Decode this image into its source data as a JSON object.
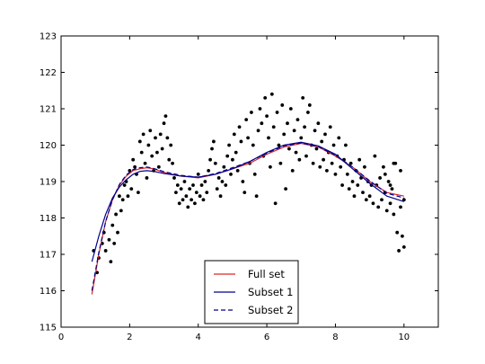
{
  "chart_data": {
    "type": "scatter",
    "title": "",
    "xlabel": "",
    "ylabel": "",
    "xlim": [
      0,
      11
    ],
    "ylim": [
      115,
      123
    ],
    "x_ticks": [
      "0",
      "2",
      "4",
      "6",
      "8",
      "10"
    ],
    "y_ticks": [
      "115",
      "116",
      "117",
      "118",
      "119",
      "120",
      "121",
      "122",
      "123"
    ],
    "grid": false,
    "legend_position": "lower center",
    "scatter": {
      "color": "#000000",
      "points": [
        [
          0.95,
          117.1
        ],
        [
          1.05,
          116.5
        ],
        [
          1.1,
          116.9
        ],
        [
          1.2,
          117.3
        ],
        [
          1.25,
          117.6
        ],
        [
          1.3,
          117.1
        ],
        [
          1.4,
          117.4
        ],
        [
          1.45,
          116.8
        ],
        [
          1.5,
          117.8
        ],
        [
          1.55,
          117.3
        ],
        [
          1.6,
          118.1
        ],
        [
          1.65,
          117.6
        ],
        [
          1.7,
          118.6
        ],
        [
          1.75,
          118.2
        ],
        [
          1.8,
          118.5
        ],
        [
          1.85,
          118.9
        ],
        [
          1.9,
          119.0
        ],
        [
          1.95,
          118.6
        ],
        [
          2.0,
          119.3
        ],
        [
          2.05,
          118.8
        ],
        [
          2.1,
          119.6
        ],
        [
          2.15,
          119.4
        ],
        [
          2.2,
          119.2
        ],
        [
          2.25,
          118.7
        ],
        [
          2.3,
          120.1
        ],
        [
          2.35,
          119.8
        ],
        [
          2.4,
          120.3
        ],
        [
          2.45,
          119.5
        ],
        [
          2.5,
          119.1
        ],
        [
          2.55,
          120.0
        ],
        [
          2.6,
          120.4
        ],
        [
          2.65,
          119.7
        ],
        [
          2.7,
          119.3
        ],
        [
          2.75,
          120.2
        ],
        [
          2.8,
          119.8
        ],
        [
          2.85,
          119.4
        ],
        [
          2.9,
          120.3
        ],
        [
          2.95,
          119.9
        ],
        [
          3.0,
          120.6
        ],
        [
          3.05,
          120.8
        ],
        [
          3.1,
          120.2
        ],
        [
          3.15,
          119.6
        ],
        [
          3.2,
          120.0
        ],
        [
          3.25,
          119.5
        ],
        [
          3.3,
          119.1
        ],
        [
          3.35,
          118.7
        ],
        [
          3.4,
          118.9
        ],
        [
          3.45,
          118.4
        ],
        [
          3.5,
          118.8
        ],
        [
          3.55,
          118.5
        ],
        [
          3.6,
          119.0
        ],
        [
          3.65,
          118.6
        ],
        [
          3.7,
          118.3
        ],
        [
          3.75,
          118.8
        ],
        [
          3.8,
          118.5
        ],
        [
          3.85,
          118.9
        ],
        [
          3.9,
          118.4
        ],
        [
          3.95,
          118.7
        ],
        [
          4.0,
          119.2
        ],
        [
          4.05,
          118.6
        ],
        [
          4.1,
          118.9
        ],
        [
          4.15,
          118.5
        ],
        [
          4.2,
          119.0
        ],
        [
          4.25,
          118.7
        ],
        [
          4.3,
          119.3
        ],
        [
          4.35,
          119.6
        ],
        [
          4.4,
          119.9
        ],
        [
          4.45,
          120.1
        ],
        [
          4.5,
          119.5
        ],
        [
          4.55,
          118.8
        ],
        [
          4.6,
          119.1
        ],
        [
          4.65,
          118.6
        ],
        [
          4.7,
          119.0
        ],
        [
          4.75,
          119.4
        ],
        [
          4.8,
          118.9
        ],
        [
          4.85,
          119.7
        ],
        [
          4.9,
          120.0
        ],
        [
          4.95,
          119.2
        ],
        [
          5.0,
          119.6
        ],
        [
          5.05,
          120.3
        ],
        [
          5.1,
          119.8
        ],
        [
          5.15,
          119.3
        ],
        [
          5.2,
          120.5
        ],
        [
          5.25,
          120.1
        ],
        [
          5.3,
          119.0
        ],
        [
          5.35,
          118.7
        ],
        [
          5.4,
          120.7
        ],
        [
          5.45,
          120.2
        ],
        [
          5.5,
          119.5
        ],
        [
          5.55,
          120.9
        ],
        [
          5.6,
          120.0
        ],
        [
          5.65,
          119.2
        ],
        [
          5.7,
          118.6
        ],
        [
          5.75,
          120.4
        ],
        [
          5.8,
          121.0
        ],
        [
          5.85,
          120.6
        ],
        [
          5.9,
          119.7
        ],
        [
          5.95,
          121.3
        ],
        [
          6.0,
          120.8
        ],
        [
          6.05,
          120.2
        ],
        [
          6.1,
          119.4
        ],
        [
          6.15,
          121.4
        ],
        [
          6.2,
          120.5
        ],
        [
          6.25,
          118.4
        ],
        [
          6.3,
          120.9
        ],
        [
          6.35,
          120.0
        ],
        [
          6.4,
          119.5
        ],
        [
          6.45,
          121.1
        ],
        [
          6.5,
          120.3
        ],
        [
          6.55,
          118.8
        ],
        [
          6.6,
          120.6
        ],
        [
          6.65,
          119.9
        ],
        [
          6.7,
          121.0
        ],
        [
          6.75,
          119.3
        ],
        [
          6.8,
          120.4
        ],
        [
          6.85,
          119.8
        ],
        [
          6.9,
          120.7
        ],
        [
          6.95,
          119.6
        ],
        [
          7.0,
          120.2
        ],
        [
          7.05,
          121.3
        ],
        [
          7.1,
          120.5
        ],
        [
          7.15,
          119.7
        ],
        [
          7.2,
          120.9
        ],
        [
          7.25,
          121.1
        ],
        [
          7.3,
          120.0
        ],
        [
          7.35,
          119.5
        ],
        [
          7.4,
          120.4
        ],
        [
          7.45,
          119.9
        ],
        [
          7.5,
          120.6
        ],
        [
          7.55,
          119.4
        ],
        [
          7.6,
          120.1
        ],
        [
          7.65,
          119.6
        ],
        [
          7.7,
          120.3
        ],
        [
          7.75,
          119.3
        ],
        [
          7.8,
          119.8
        ],
        [
          7.85,
          120.5
        ],
        [
          7.9,
          119.5
        ],
        [
          7.95,
          120.0
        ],
        [
          8.0,
          119.2
        ],
        [
          8.05,
          119.7
        ],
        [
          8.1,
          120.2
        ],
        [
          8.15,
          119.4
        ],
        [
          8.2,
          118.9
        ],
        [
          8.25,
          119.6
        ],
        [
          8.3,
          120.0
        ],
        [
          8.35,
          119.2
        ],
        [
          8.4,
          118.8
        ],
        [
          8.45,
          119.5
        ],
        [
          8.5,
          119.0
        ],
        [
          8.55,
          118.6
        ],
        [
          8.6,
          119.3
        ],
        [
          8.65,
          118.9
        ],
        [
          8.7,
          119.6
        ],
        [
          8.75,
          119.1
        ],
        [
          8.8,
          118.7
        ],
        [
          8.85,
          119.4
        ],
        [
          8.9,
          118.5
        ],
        [
          8.95,
          119.0
        ],
        [
          9.0,
          118.6
        ],
        [
          9.05,
          118.9
        ],
        [
          9.1,
          118.4
        ],
        [
          9.15,
          119.7
        ],
        [
          9.2,
          118.9
        ],
        [
          9.25,
          118.3
        ],
        [
          9.3,
          119.1
        ],
        [
          9.35,
          118.5
        ],
        [
          9.4,
          119.4
        ],
        [
          9.45,
          118.7
        ],
        [
          9.5,
          118.2
        ],
        [
          9.55,
          119.0
        ],
        [
          9.6,
          118.4
        ],
        [
          9.65,
          118.8
        ],
        [
          9.7,
          118.1
        ],
        [
          9.75,
          119.5
        ],
        [
          9.8,
          117.6
        ],
        [
          9.85,
          117.1
        ],
        [
          9.9,
          118.3
        ],
        [
          9.95,
          117.5
        ],
        [
          10.0,
          117.2
        ],
        [
          10.0,
          118.5
        ],
        [
          9.9,
          119.3
        ],
        [
          9.7,
          119.5
        ],
        [
          9.6,
          118.9
        ],
        [
          9.45,
          119.2
        ]
      ]
    },
    "series": [
      {
        "name": "Full set",
        "color": "#d62728",
        "style": "solid",
        "x": [
          0.9,
          1.1,
          1.3,
          1.5,
          1.7,
          1.9,
          2.1,
          2.3,
          2.5,
          2.7,
          3.0,
          3.5,
          4.0,
          4.5,
          5.0,
          5.5,
          6.0,
          6.5,
          7.0,
          7.5,
          8.0,
          8.5,
          9.0,
          9.5,
          10.0
        ],
        "y": [
          115.9,
          117.0,
          117.9,
          118.5,
          118.9,
          119.15,
          119.3,
          119.35,
          119.38,
          119.35,
          119.25,
          119.15,
          119.1,
          119.2,
          119.35,
          119.5,
          119.75,
          119.95,
          120.05,
          119.95,
          119.7,
          119.4,
          119.0,
          118.7,
          118.6
        ]
      },
      {
        "name": "Subset 1",
        "color": "#00008b",
        "style": "solid",
        "x": [
          0.9,
          1.1,
          1.3,
          1.5,
          1.7,
          1.9,
          2.1,
          2.3,
          2.5,
          2.7,
          3.0,
          3.5,
          4.0,
          4.5,
          5.0,
          5.5,
          6.0,
          6.5,
          7.0,
          7.5,
          8.0,
          8.5,
          9.0,
          9.5,
          10.0
        ],
        "y": [
          116.8,
          117.5,
          118.1,
          118.55,
          118.85,
          119.05,
          119.2,
          119.28,
          119.3,
          119.28,
          119.22,
          119.15,
          119.12,
          119.2,
          119.35,
          119.55,
          119.8,
          120.0,
          120.08,
          119.98,
          119.75,
          119.35,
          118.95,
          118.6,
          118.45
        ]
      },
      {
        "name": "Subset 2",
        "color": "#00008b",
        "style": "dashed",
        "x": [
          0.9,
          1.1,
          1.3,
          1.5,
          1.7,
          1.9,
          2.1,
          2.3,
          2.5,
          2.7,
          3.0,
          3.5,
          4.0,
          4.5,
          5.0,
          5.5,
          6.0,
          6.5,
          7.0,
          7.5,
          8.0,
          8.5,
          9.0,
          9.5,
          10.0
        ],
        "y": [
          116.0,
          117.05,
          117.9,
          118.5,
          118.92,
          119.18,
          119.33,
          119.38,
          119.4,
          119.36,
          119.27,
          119.17,
          119.12,
          119.22,
          119.38,
          119.55,
          119.78,
          119.98,
          120.06,
          119.96,
          119.72,
          119.4,
          119.02,
          118.68,
          118.55
        ]
      }
    ]
  }
}
